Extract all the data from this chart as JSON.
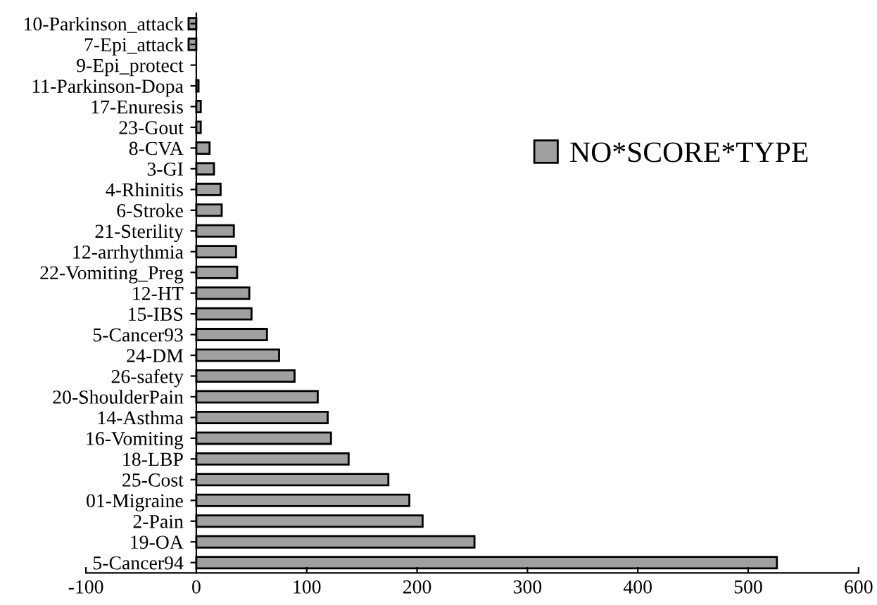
{
  "chart_data": {
    "type": "bar",
    "orientation": "horizontal",
    "categories": [
      "10-Parkinson_attack",
      "7-Epi_attack",
      "9-Epi_protect",
      "11-Parkinson-Dopa",
      "17-Enuresis",
      "23-Gout",
      "8-CVA",
      "3-GI",
      "4-Rhinitis",
      "6-Stroke",
      "21-Sterility",
      "12-arrhythmia",
      "22-Vomiting_Preg",
      "12-HT",
      "15-IBS",
      "5-Cancer93",
      "24-DM",
      "26-safety",
      "20-ShoulderPain",
      "14-Asthma",
      "16-Vomiting",
      "18-LBP",
      "25-Cost",
      "01-Migraine",
      "2-Pain",
      "19-OA",
      "5-Cancer94"
    ],
    "series": [
      {
        "name": "NO*SCORE*TYPE",
        "color": "#a0a0a0",
        "values": [
          -7,
          -7,
          0,
          2,
          4,
          4,
          12,
          16,
          22,
          23,
          34,
          36,
          37,
          48,
          50,
          64,
          75,
          89,
          110,
          119,
          122,
          138,
          174,
          193,
          205,
          252,
          526
        ]
      }
    ],
    "xlim": [
      -100,
      600
    ],
    "xticks": [
      -100,
      0,
      100,
      200,
      300,
      400,
      500,
      600
    ],
    "grid": false,
    "legend": "top right"
  }
}
